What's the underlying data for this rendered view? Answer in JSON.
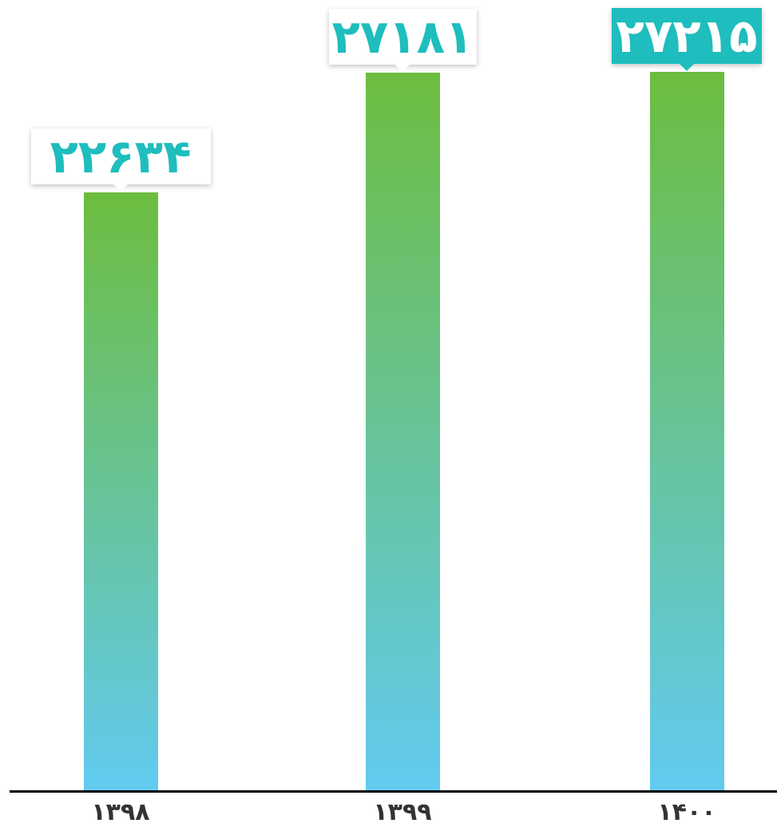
{
  "chart_data": {
    "type": "bar",
    "categories": [
      "۱۳۹۸",
      "۱۳۹۹",
      "۱۴۰۰"
    ],
    "values": [
      22634,
      27181,
      27215
    ],
    "data_labels": [
      "۲۲۶۳۴",
      "۲۷۱۸۱",
      "۲۷۲۱۵"
    ],
    "highlighted_index": 2,
    "title": "",
    "xlabel": "",
    "ylabel": "",
    "grid": false,
    "legend": "none",
    "colors": {
      "bar_gradient_top": "#6dbd3f",
      "bar_gradient_bottom": "#62caf0",
      "label_text": "#1fbdbd",
      "label_background": "#ffffff",
      "highlight_background": "#1fbdbd",
      "highlight_text": "#ffffff",
      "axis": "#000000",
      "tick_text": "#333333"
    }
  }
}
